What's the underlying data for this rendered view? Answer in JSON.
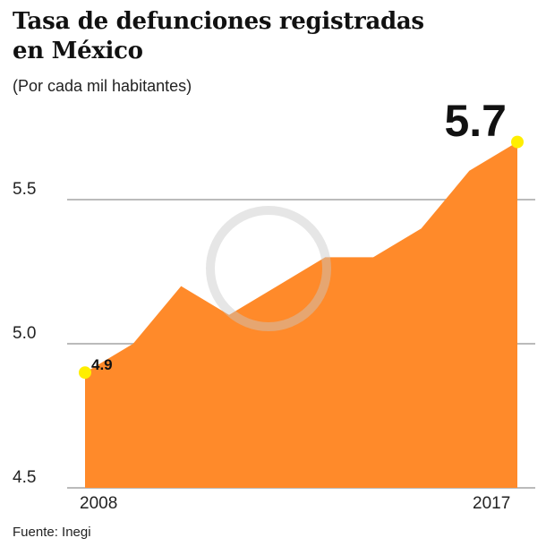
{
  "chart_data": {
    "type": "area",
    "title": "Tasa de defunciones registradas en México",
    "title_lines": [
      "Tasa de defunciones registradas",
      "en México"
    ],
    "subtitle": "(Por cada mil habitantes)",
    "x": [
      2008,
      2009,
      2010,
      2011,
      2012,
      2013,
      2014,
      2015,
      2016,
      2017
    ],
    "values": [
      4.9,
      5.0,
      5.2,
      5.1,
      5.2,
      5.3,
      5.3,
      5.4,
      5.6,
      5.7
    ],
    "ylim": [
      4.5,
      5.7
    ],
    "y_ticks": [
      "4.5",
      "5.0",
      "5.5"
    ],
    "x_tick_labels": [
      "2008",
      "2017"
    ],
    "annotations": {
      "start": "4.9",
      "end": "5.7"
    },
    "grid": true,
    "colors": {
      "area": "#FF8A2A",
      "marker": "#FFEE00",
      "grid": "#BBBBBB"
    },
    "source": "Fuente: Inegi"
  }
}
